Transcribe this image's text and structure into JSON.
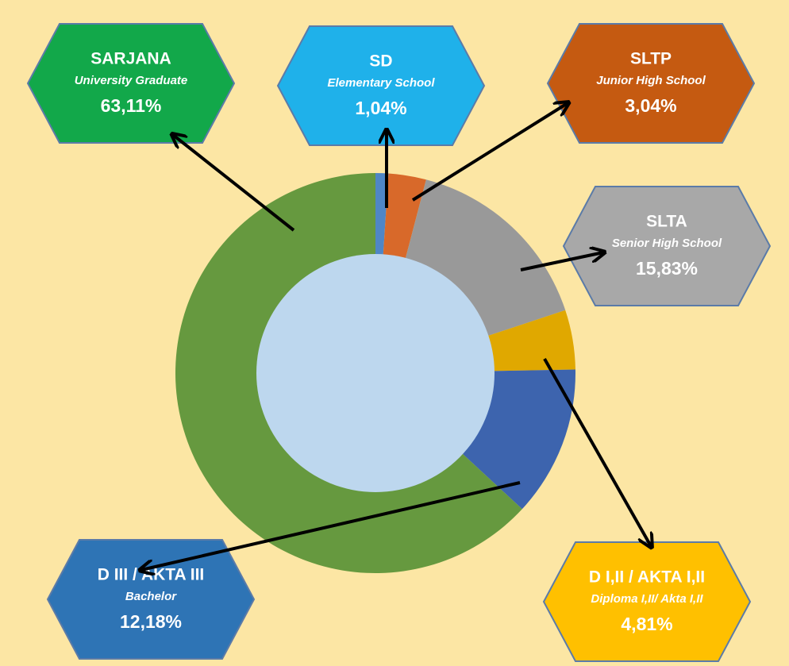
{
  "chart_data": {
    "type": "donut",
    "categories": [
      "SD",
      "SLTP",
      "SLTA",
      "D I,II / AKTA I,II",
      "D III / AKTA III",
      "SARJANA"
    ],
    "subtitles": [
      "Elementary School",
      "Junior High School",
      "Senior High School",
      "Diploma I,II/ Akta I,II",
      "Bachelor",
      "University Graduate"
    ],
    "values": [
      1.04,
      3.04,
      15.83,
      4.81,
      12.18,
      63.11
    ],
    "value_labels": [
      "1,04%",
      "3,04%",
      "15,83%",
      "4,81%",
      "12,18%",
      "63,11%"
    ],
    "colors": [
      "#4f86c6",
      "#d8692a",
      "#999999",
      "#e0a800",
      "#3d64ae",
      "#66993f"
    ],
    "label_colors": [
      "#1fb1ea",
      "#c55a11",
      "#a8a8a8",
      "#ffc000",
      "#2e74b5",
      "#12a84a"
    ],
    "hole_color": "#bdd7ee"
  }
}
